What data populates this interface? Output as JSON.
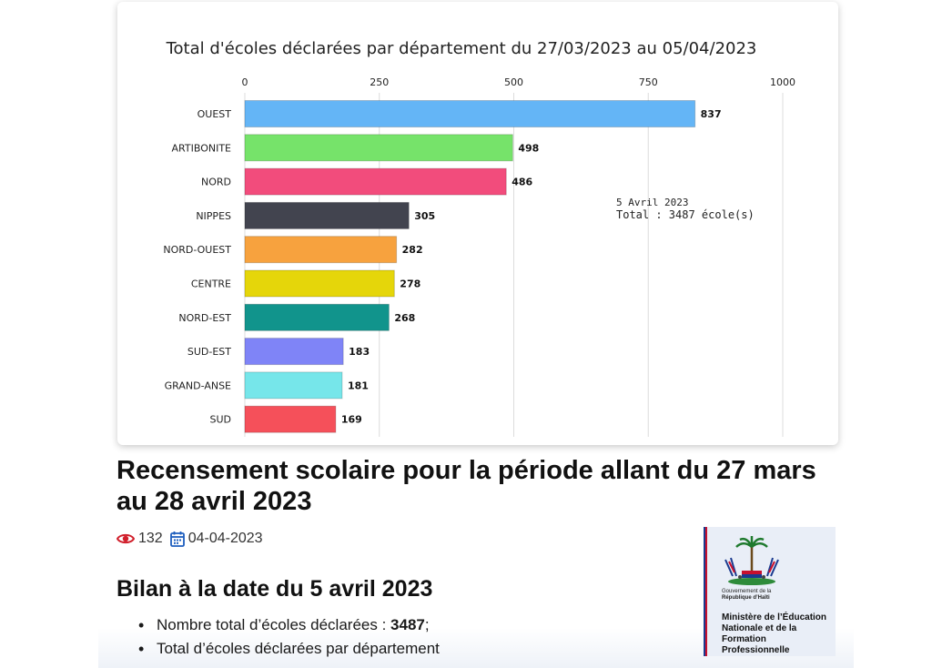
{
  "chart_data": {
    "type": "bar",
    "orientation": "horizontal",
    "title": "Total d'écoles déclarées par département du 27/03/2023 au 05/04/2023",
    "categories": [
      "OUEST",
      "ARTIBONITE",
      "NORD",
      "NIPPES",
      "NORD-OUEST",
      "CENTRE",
      "NORD-EST",
      "SUD-EST",
      "GRAND-ANSE",
      "SUD"
    ],
    "values": [
      837,
      498,
      486,
      305,
      282,
      278,
      268,
      183,
      181,
      169
    ],
    "colors": [
      "#64b5f6",
      "#76e36a",
      "#f24c7c",
      "#42444f",
      "#f7a23e",
      "#e5d60a",
      "#11948c",
      "#7f84f7",
      "#76e6ea",
      "#f5505a"
    ],
    "xlim": [
      0,
      1000
    ],
    "xticks": [
      "0",
      "250",
      "500",
      "750",
      "1000"
    ],
    "xaxis_position": "top",
    "grid": "vertical",
    "annotation": {
      "label": "5 Avril 2023",
      "total": "Total : 3487 école(s)"
    }
  },
  "article": {
    "title": "Recensement scolaire pour la période allant du 27 mars au 28 avril 2023",
    "views": "132",
    "date": "04-04-2023",
    "subtitle": "Bilan à la date du 5 avril 2023",
    "bullet1_text": "Nombre total d’écoles déclarées : ",
    "bullet1_value": "3487",
    "bullet1_suffix": ";",
    "bullet2_text": "Total d’écoles déclarées par département"
  },
  "logo": {
    "gov_line1": "Gouvernement de la",
    "gov_line2": "République d’Haïti",
    "ministry_line1": "Ministère de l’Éducation",
    "ministry_line2": "Nationale et de la",
    "ministry_line3": "Formation Professionnelle"
  },
  "icons": {
    "views": "eye-icon",
    "date": "calendar-icon"
  },
  "colors": {
    "eye_icon": "#d11f2b",
    "calendar_icon": "#1f5fbf"
  }
}
